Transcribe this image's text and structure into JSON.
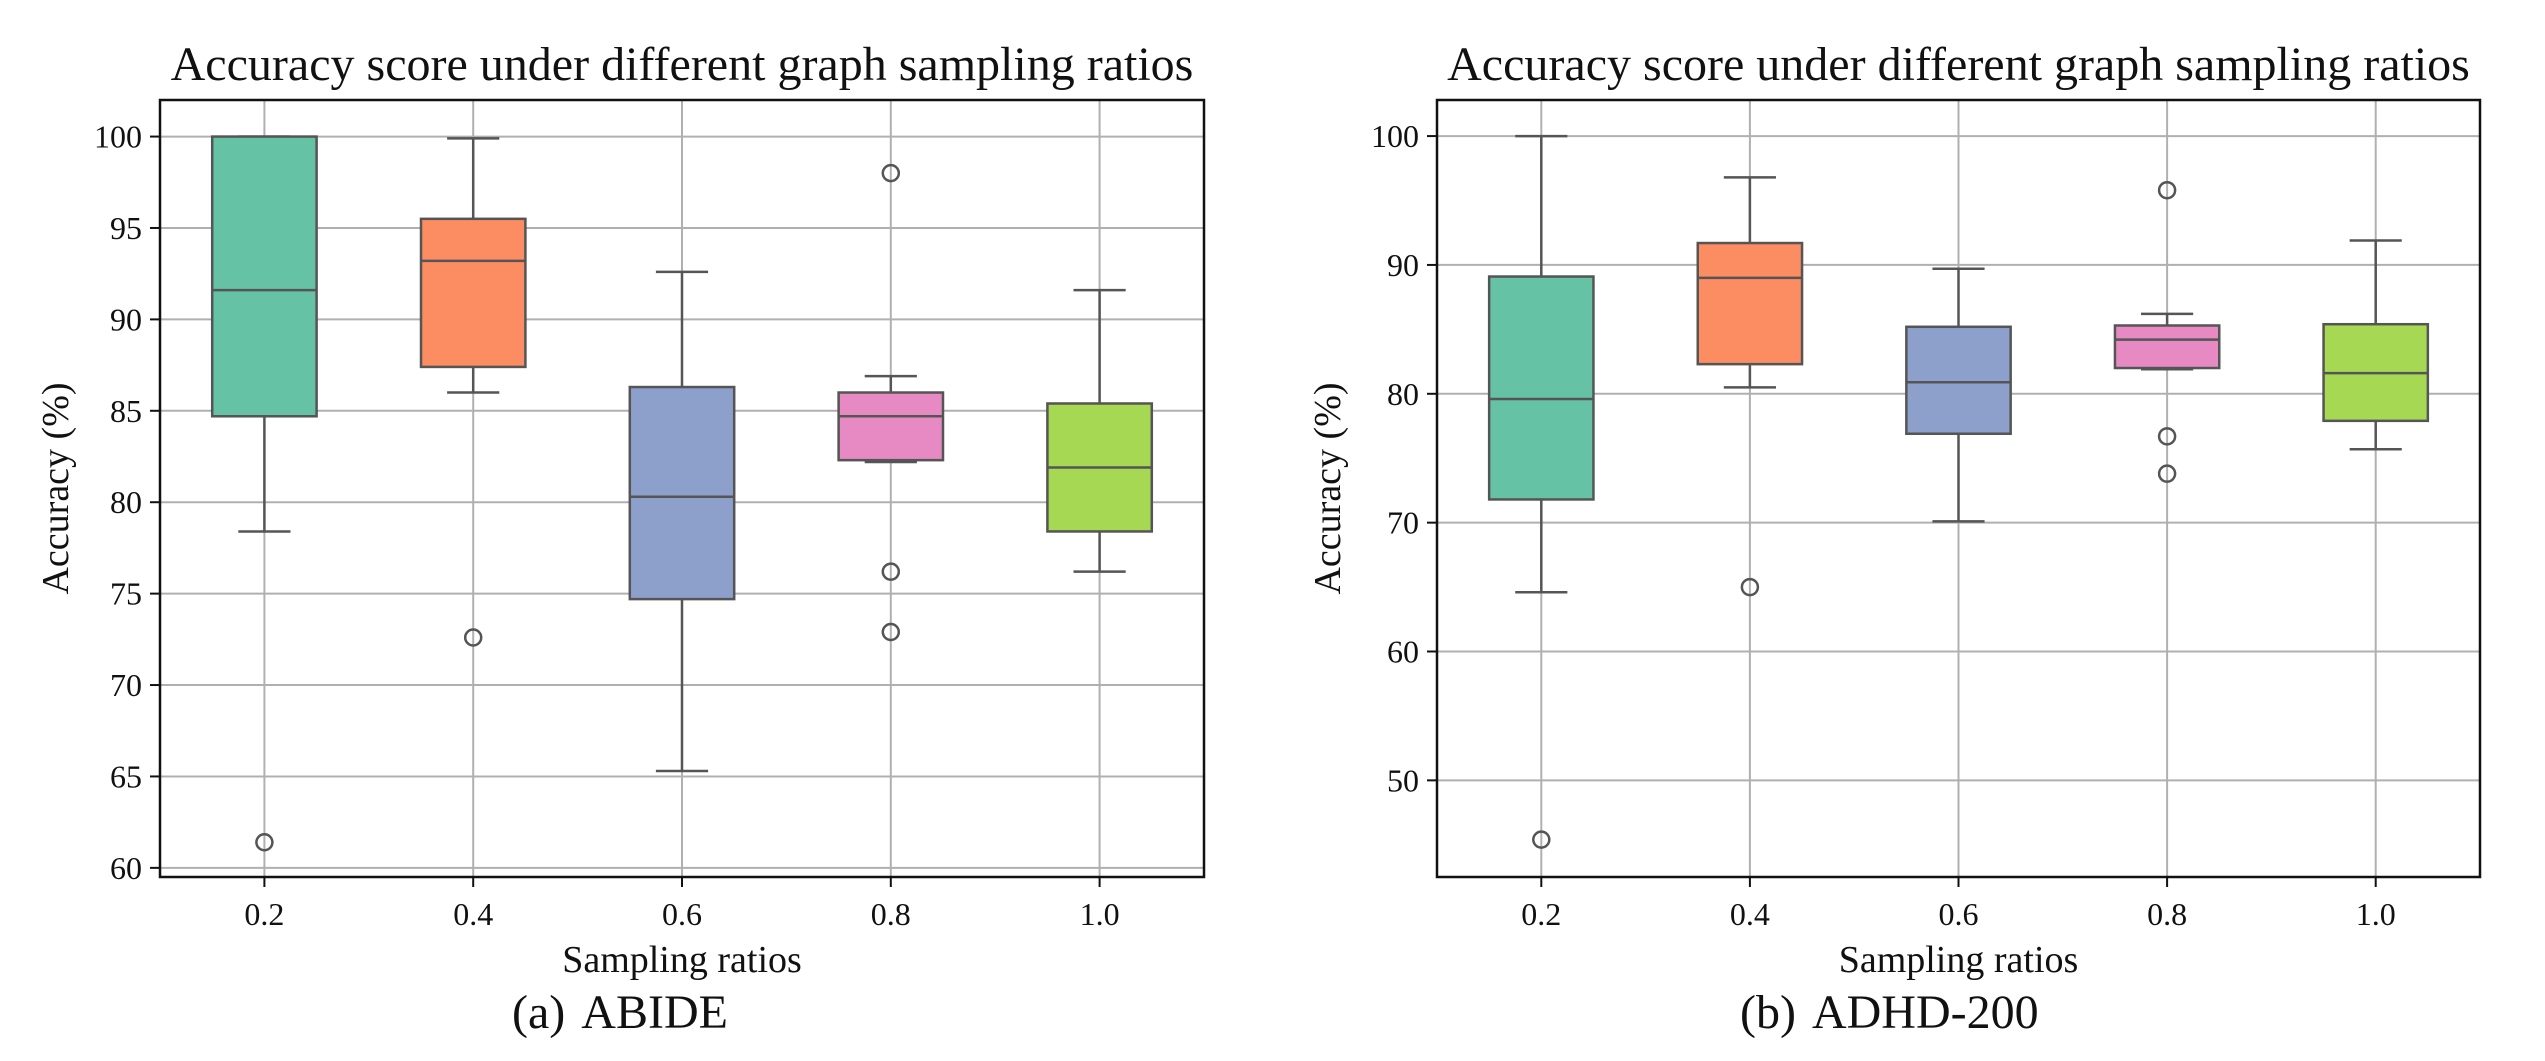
{
  "chart_data": [
    {
      "type": "box",
      "title": "Accuracy score under different graph sampling ratios",
      "xlabel": "Sampling ratios",
      "ylabel": "Accuracy (%)",
      "caption_tag": "(a)",
      "caption_text": "ABIDE",
      "categories": [
        "0.2",
        "0.4",
        "0.6",
        "0.8",
        "1.0"
      ],
      "ylim": [
        59.5,
        102
      ],
      "yticks": [
        60,
        65,
        70,
        75,
        80,
        85,
        90,
        95,
        100
      ],
      "grid": true,
      "boxes": [
        {
          "category": "0.2",
          "color": "#66c2a5",
          "whisker_low": 78.4,
          "q1": 84.7,
          "median": 91.6,
          "q3": 100.0,
          "whisker_high": 100.0,
          "outliers": [
            61.4
          ]
        },
        {
          "category": "0.4",
          "color": "#fc8d62",
          "whisker_low": 86.0,
          "q1": 87.4,
          "median": 93.2,
          "q3": 95.5,
          "whisker_high": 99.9,
          "outliers": [
            72.6
          ]
        },
        {
          "category": "0.6",
          "color": "#8da0cb",
          "whisker_low": 65.3,
          "q1": 74.7,
          "median": 80.3,
          "q3": 86.3,
          "whisker_high": 92.6,
          "outliers": []
        },
        {
          "category": "0.8",
          "color": "#e78ac3",
          "whisker_low": 82.2,
          "q1": 82.3,
          "median": 84.7,
          "q3": 86.0,
          "whisker_high": 86.9,
          "outliers": [
            98.0,
            76.2,
            72.9
          ]
        },
        {
          "category": "1.0",
          "color": "#a6d854",
          "whisker_low": 76.2,
          "q1": 78.4,
          "median": 81.9,
          "q3": 85.4,
          "whisker_high": 91.6,
          "outliers": []
        }
      ]
    },
    {
      "type": "box",
      "title": "Accuracy score under different graph sampling ratios",
      "xlabel": "Sampling ratios",
      "ylabel": "Accuracy (%)",
      "caption_tag": "(b)",
      "caption_text": "ADHD-200",
      "categories": [
        "0.2",
        "0.4",
        "0.6",
        "0.8",
        "1.0"
      ],
      "ylim": [
        42.5,
        102.8
      ],
      "yticks": [
        50,
        60,
        70,
        80,
        90,
        100
      ],
      "grid": true,
      "boxes": [
        {
          "category": "0.2",
          "color": "#66c2a5",
          "whisker_low": 64.6,
          "q1": 71.8,
          "median": 79.6,
          "q3": 89.1,
          "whisker_high": 100.0,
          "outliers": [
            45.4
          ]
        },
        {
          "category": "0.4",
          "color": "#fc8d62",
          "whisker_low": 80.5,
          "q1": 82.3,
          "median": 89.0,
          "q3": 91.7,
          "whisker_high": 96.8,
          "outliers": [
            65.0
          ]
        },
        {
          "category": "0.6",
          "color": "#8da0cb",
          "whisker_low": 70.1,
          "q1": 76.9,
          "median": 80.9,
          "q3": 85.2,
          "whisker_high": 89.7,
          "outliers": []
        },
        {
          "category": "0.8",
          "color": "#e78ac3",
          "whisker_low": 81.9,
          "q1": 82.0,
          "median": 84.2,
          "q3": 85.3,
          "whisker_high": 86.2,
          "outliers": [
            95.8,
            76.7,
            73.8
          ]
        },
        {
          "category": "1.0",
          "color": "#a6d854",
          "whisker_low": 75.7,
          "q1": 77.9,
          "median": 81.6,
          "q3": 85.4,
          "whisker_high": 91.9,
          "outliers": []
        }
      ]
    }
  ]
}
